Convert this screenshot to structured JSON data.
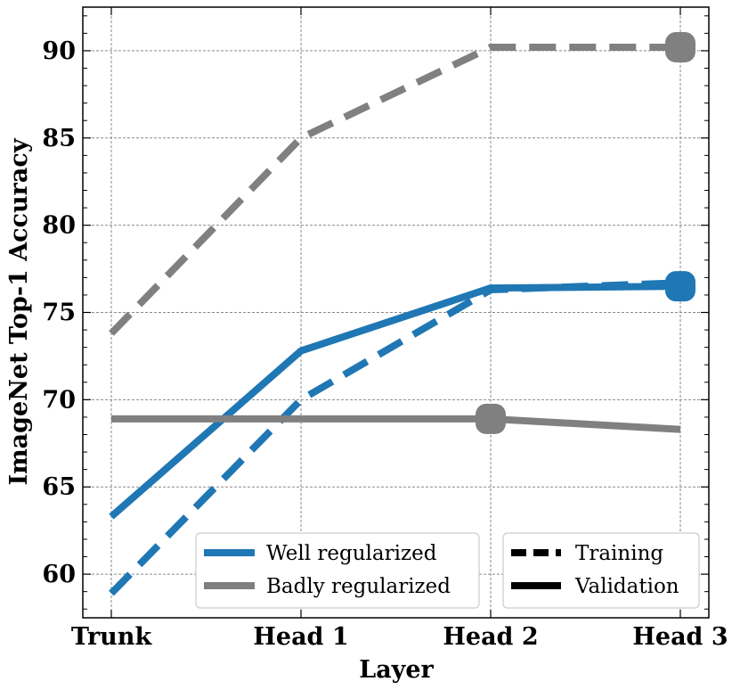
{
  "chart_data": {
    "type": "line",
    "xlabel": "Layer",
    "ylabel": "ImageNet Top-1 Accuracy",
    "categories": [
      "Trunk",
      "Head 1",
      "Head 2",
      "Head 3"
    ],
    "ylim": [
      57.5,
      92.5
    ],
    "yticks": [
      60,
      65,
      70,
      75,
      80,
      85,
      90
    ],
    "grid": true,
    "series": [
      {
        "name": "Well regularized",
        "style": "Validation",
        "color": "#1f77b4",
        "values": [
          63.3,
          72.8,
          76.4,
          76.5
        ],
        "marker_at": 3
      },
      {
        "name": "Well regularized",
        "style": "Training",
        "color": "#1f77b4",
        "values": [
          58.9,
          70.0,
          76.3,
          76.7
        ],
        "marker_at": null
      },
      {
        "name": "Badly regularized",
        "style": "Validation",
        "color": "#808080",
        "values": [
          68.9,
          68.9,
          68.9,
          68.3
        ],
        "marker_at": 2
      },
      {
        "name": "Badly regularized",
        "style": "Training",
        "color": "#808080",
        "values": [
          73.8,
          85.0,
          90.2,
          90.2
        ],
        "marker_at": 3
      }
    ],
    "legend_models": {
      "placement": "lower-center",
      "entries": [
        {
          "label": "Well regularized",
          "color": "#1f77b4"
        },
        {
          "label": "Badly regularized",
          "color": "#808080"
        }
      ]
    },
    "legend_styles": {
      "placement": "lower-right",
      "entries": [
        {
          "label": "Training",
          "dash": true
        },
        {
          "label": "Validation",
          "dash": false
        }
      ]
    }
  }
}
